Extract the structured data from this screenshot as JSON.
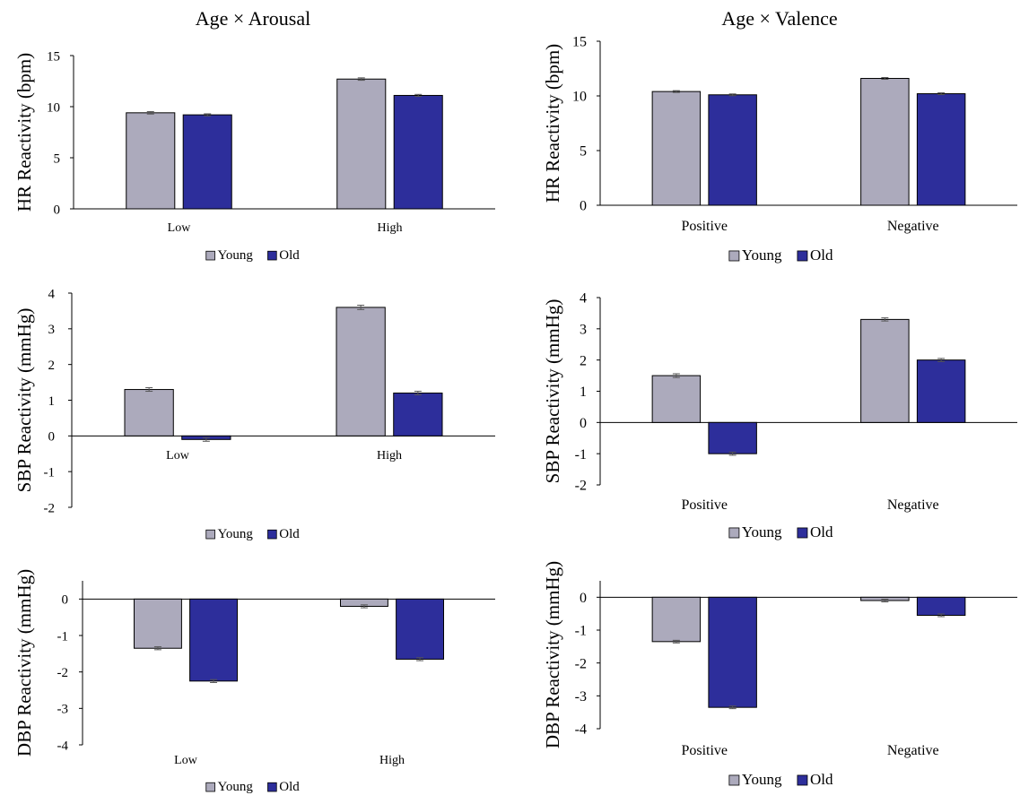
{
  "figure": {
    "titles": [
      "Age × Arousal",
      "Age × Valence"
    ]
  },
  "colors": {
    "young": "#acaabc",
    "old": "#2d2e9b",
    "axis": "#000000",
    "errorbar": "#555555"
  },
  "chart_data": [
    {
      "type": "bar",
      "title": "",
      "ylabel": "HR Reactivity (bpm)",
      "categories": [
        "Low",
        "High"
      ],
      "ylim": [
        0,
        15
      ],
      "yticks": [
        0,
        5,
        10,
        15
      ],
      "legend": "bottom",
      "series": [
        {
          "name": "Young",
          "values": [
            9.4,
            12.7
          ],
          "errors": [
            0.12,
            0.12
          ]
        },
        {
          "name": "Old",
          "values": [
            9.2,
            11.1
          ],
          "errors": [
            0.1,
            0.1
          ]
        }
      ]
    },
    {
      "type": "bar",
      "title": "",
      "ylabel": "HR Reactivity (bpm)",
      "categories": [
        "Positive",
        "Negative"
      ],
      "ylim": [
        0,
        15
      ],
      "yticks": [
        0,
        5,
        10,
        15
      ],
      "legend": "bottom",
      "series": [
        {
          "name": "Young",
          "values": [
            10.4,
            11.6
          ],
          "errors": [
            0.08,
            0.08
          ]
        },
        {
          "name": "Old",
          "values": [
            10.1,
            10.2
          ],
          "errors": [
            0.08,
            0.08
          ]
        }
      ]
    },
    {
      "type": "bar",
      "title": "",
      "ylabel": "SBP Reactivity (mmHg)",
      "categories": [
        "Low",
        "High"
      ],
      "ylim": [
        -2,
        4
      ],
      "yticks": [
        -2,
        -1,
        0,
        1,
        2,
        3,
        4
      ],
      "legend": "bottom",
      "series": [
        {
          "name": "Young",
          "values": [
            1.3,
            3.6
          ],
          "errors": [
            0.05,
            0.06
          ]
        },
        {
          "name": "Old",
          "values": [
            -0.1,
            1.2
          ],
          "errors": [
            0.05,
            0.05
          ]
        }
      ]
    },
    {
      "type": "bar",
      "title": "",
      "ylabel": "SBP Reactivity (mmHg)",
      "categories": [
        "Positive",
        "Negative"
      ],
      "ylim": [
        -2,
        4
      ],
      "yticks": [
        -2,
        -1,
        0,
        1,
        2,
        3,
        4
      ],
      "legend": "bottom",
      "series": [
        {
          "name": "Young",
          "values": [
            1.5,
            3.3
          ],
          "errors": [
            0.06,
            0.05
          ]
        },
        {
          "name": "Old",
          "values": [
            -1.0,
            2.0
          ],
          "errors": [
            0.05,
            0.05
          ]
        }
      ]
    },
    {
      "type": "bar",
      "title": "",
      "ylabel": "DBP Reactivity (mmHg)",
      "categories": [
        "Low",
        "High"
      ],
      "ylim": [
        -4,
        0.5
      ],
      "yticks": [
        -4,
        -3,
        -2,
        -1,
        0
      ],
      "legend": "bottom",
      "series": [
        {
          "name": "Young",
          "values": [
            -1.35,
            -0.2
          ],
          "errors": [
            0.04,
            0.04
          ]
        },
        {
          "name": "Old",
          "values": [
            -2.25,
            -1.65
          ],
          "errors": [
            0.04,
            0.04
          ]
        }
      ]
    },
    {
      "type": "bar",
      "title": "",
      "ylabel": "DBP Reactivity (mmHg)",
      "categories": [
        "Positive",
        "Negative"
      ],
      "ylim": [
        -4,
        0.5
      ],
      "yticks": [
        -4,
        -3,
        -2,
        -1,
        0
      ],
      "legend": "bottom",
      "series": [
        {
          "name": "Young",
          "values": [
            -1.35,
            -0.1
          ],
          "errors": [
            0.04,
            0.04
          ]
        },
        {
          "name": "Old",
          "values": [
            -3.35,
            -0.55
          ],
          "errors": [
            0.04,
            0.04
          ]
        }
      ]
    }
  ]
}
